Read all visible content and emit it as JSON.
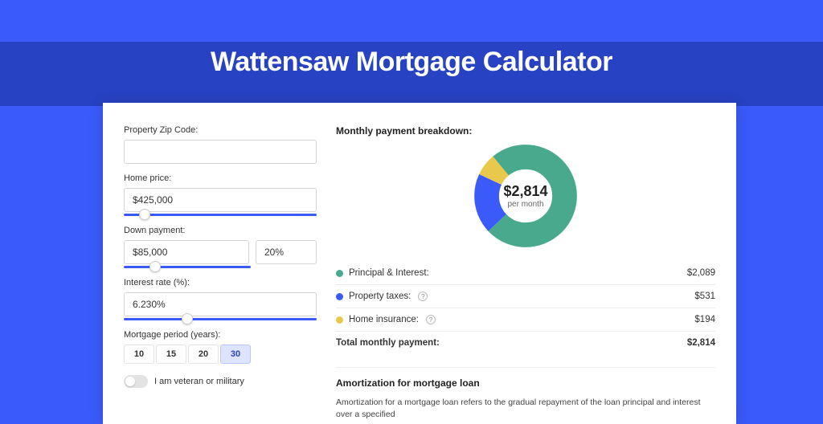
{
  "title": "Wattensaw Mortgage Calculator",
  "colors": {
    "page_bg": "#3a5bfa",
    "band_bg": "#2742c2",
    "panel_bg": "#ffffff",
    "accent": "#3a5bfa",
    "green": "#48a98c",
    "blue": "#3a5bfa",
    "yellow": "#e9c94b"
  },
  "form": {
    "zip": {
      "label": "Property Zip Code:",
      "value": ""
    },
    "home_price": {
      "label": "Home price:",
      "value": "$425,000",
      "slider_pos_pct": 8
    },
    "down_payment": {
      "label": "Down payment:",
      "amount": "$85,000",
      "pct": "20%",
      "slider_pos_pct": 20
    },
    "interest": {
      "label": "Interest rate (%):",
      "value": "6.230%",
      "slider_pos_pct": 30
    },
    "period": {
      "label": "Mortgage period (years):",
      "options": [
        "10",
        "15",
        "20",
        "30"
      ],
      "selected": "30"
    },
    "veteran": {
      "label": "I am veteran or military",
      "checked": false
    }
  },
  "breakdown": {
    "title": "Monthly payment breakdown:",
    "center_value": "$2,814",
    "center_sub": "per month",
    "donut": {
      "type": "donut",
      "slices": [
        {
          "label": "Principal & Interest:",
          "value": "$2,089",
          "pct": 74,
          "color": "#48a98c"
        },
        {
          "label": "Property taxes:",
          "value": "$531",
          "pct": 19,
          "color": "#3a5bfa"
        },
        {
          "label": "Home insurance:",
          "value": "$194",
          "pct": 7,
          "color": "#e9c94b"
        }
      ],
      "start_angle_deg": -40,
      "thickness_pct": 24,
      "bg": "#ffffff"
    },
    "total": {
      "label": "Total monthly payment:",
      "value": "$2,814"
    }
  },
  "amort": {
    "title": "Amortization for mortgage loan",
    "text": "Amortization for a mortgage loan refers to the gradual repayment of the loan principal and interest over a specified"
  }
}
